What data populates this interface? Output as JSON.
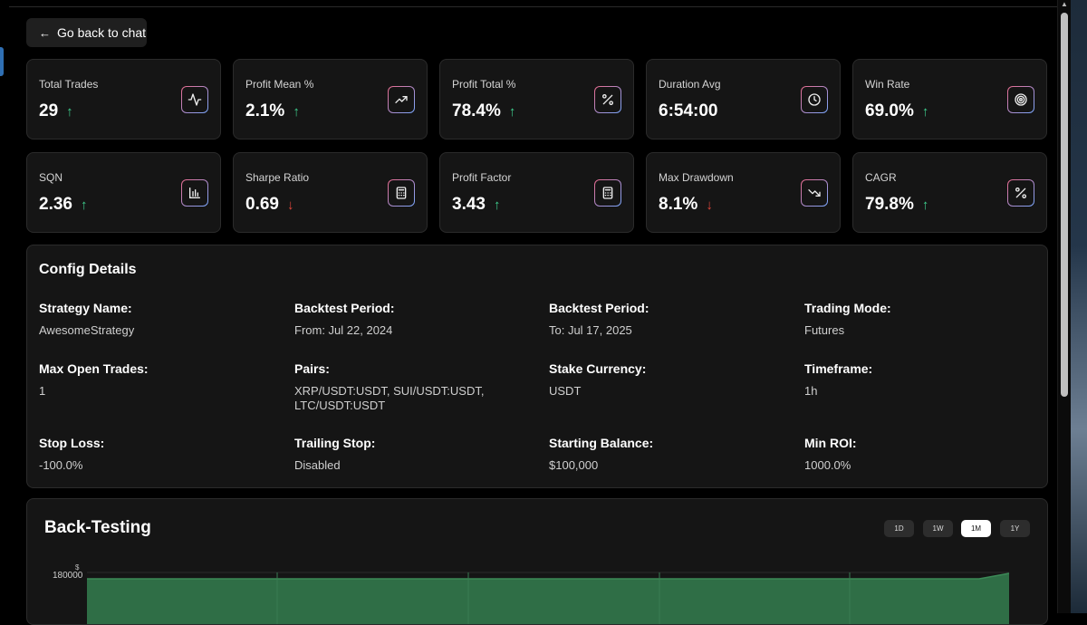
{
  "back_button": {
    "label": "Go back to chat"
  },
  "stats": [
    {
      "label": "Total Trades",
      "value": "29",
      "trend": "up",
      "icon": "activity-icon"
    },
    {
      "label": "Profit Mean %",
      "value": "2.1%",
      "trend": "up",
      "icon": "trending-up-icon"
    },
    {
      "label": "Profit Total %",
      "value": "78.4%",
      "trend": "up",
      "icon": "percent-icon"
    },
    {
      "label": "Duration Avg",
      "value": "6:54:00",
      "trend": "none",
      "icon": "clock-icon"
    },
    {
      "label": "Win Rate",
      "value": "69.0%",
      "trend": "up",
      "icon": "target-icon"
    },
    {
      "label": "SQN",
      "value": "2.36",
      "trend": "up",
      "icon": "bar-chart-icon"
    },
    {
      "label": "Sharpe Ratio",
      "value": "0.69",
      "trend": "down",
      "icon": "calculator-icon"
    },
    {
      "label": "Profit Factor",
      "value": "3.43",
      "trend": "up",
      "icon": "calculator-icon"
    },
    {
      "label": "Max Drawdown",
      "value": "8.1%",
      "trend": "down",
      "icon": "trending-down-icon"
    },
    {
      "label": "CAGR",
      "value": "79.8%",
      "trend": "up",
      "icon": "percent-icon"
    }
  ],
  "config": {
    "title": "Config Details",
    "items": [
      {
        "key": "Strategy Name:",
        "value": "AwesomeStrategy"
      },
      {
        "key": "Backtest Period:",
        "value": "From: Jul 22, 2024"
      },
      {
        "key": "Backtest Period:",
        "value": "To: Jul 17, 2025"
      },
      {
        "key": "Trading Mode:",
        "value": "Futures"
      },
      {
        "key": "Max Open Trades:",
        "value": "1"
      },
      {
        "key": "Pairs:",
        "value": "XRP/USDT:USDT, SUI/USDT:USDT, LTC/USDT:USDT"
      },
      {
        "key": "Stake Currency:",
        "value": "USDT"
      },
      {
        "key": "Timeframe:",
        "value": "1h"
      },
      {
        "key": "Stop Loss:",
        "value": "-100.0%"
      },
      {
        "key": "Trailing Stop:",
        "value": "Disabled"
      },
      {
        "key": "Starting Balance:",
        "value": "$100,000"
      },
      {
        "key": "Min ROI:",
        "value": "1000.0%"
      }
    ]
  },
  "backtesting": {
    "title": "Back-Testing",
    "timeframes": [
      "1D",
      "1W",
      "1M",
      "1Y"
    ],
    "active_timeframe": "1M",
    "y_unit": "$",
    "y_tick": "180000"
  },
  "colors": {
    "trend_up": "#3ecf8e",
    "trend_down": "#e0453a",
    "chart_fill": "#2f6e46",
    "chart_line": "#3c8a57"
  }
}
